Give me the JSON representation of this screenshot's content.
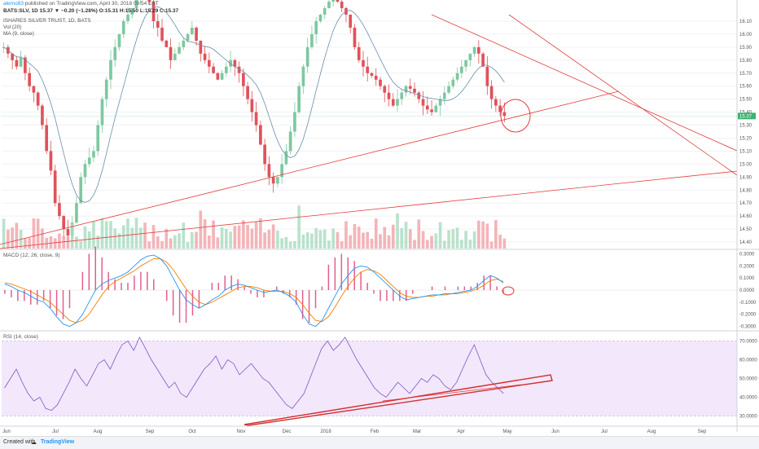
{
  "header": {
    "publisher_line_user": "alemo83",
    "publisher_line_rest": " published on TradingView.com, April 30, 2018 09:54 EST",
    "symbol_line": "BATS:SLV, 1D  15.37 ▼ −0.20 (−1.28%) O:15.31 H:15.50 L:15.29 C:15.37",
    "title": "ISHARES SILVER TRUST, 1D, BATS",
    "vol_label": "Vol (20)",
    "ma_label": "MA (9, close)"
  },
  "panes": {
    "macd_label": "MACD (12, 26, close, 9)",
    "rsi_label": "RSI (14, close)"
  },
  "footer": {
    "created_with": "Created with",
    "brand": "TradingView"
  },
  "colors": {
    "up": "#7ec8a0",
    "down": "#e0525a",
    "up_vol": "#a9dbbf",
    "down_vol": "#f0a3a8",
    "trend": "#e43c3c",
    "macd": "#2196f3",
    "signal": "#f57c00",
    "hist": "#d81b60",
    "rsi": "#7e57c2",
    "rsi_band": "#f3e7fb",
    "ma": "#6a8ca8"
  },
  "chart_data": {
    "type": "candlestick",
    "x_labels": [
      "Jun",
      "Jul",
      "Aug",
      "Sep",
      "Oct",
      "Nov",
      "Dec",
      "2018",
      "Feb",
      "Mar",
      "Apr",
      "May",
      "Jun",
      "Jul",
      "Aug",
      "Sep"
    ],
    "price_axis": [
      16.1,
      16.0,
      15.9,
      15.8,
      15.7,
      15.6,
      15.5,
      15.4,
      15.3,
      15.2,
      15.1,
      15.0,
      14.9,
      14.8,
      14.7,
      14.6,
      14.5,
      14.4
    ],
    "last_price": 15.37,
    "macd_axis": [
      0.3,
      0.2,
      0.1,
      0.0,
      -0.1,
      -0.2,
      -0.3
    ],
    "rsi_axis": [
      70,
      60,
      50,
      40,
      30
    ],
    "price_path": [
      15.9,
      15.85,
      15.8,
      15.75,
      15.82,
      15.7,
      15.6,
      15.55,
      15.45,
      15.3,
      15.1,
      14.95,
      14.7,
      14.6,
      14.5,
      14.45,
      14.55,
      14.7,
      14.9,
      15.0,
      15.05,
      15.1,
      15.3,
      15.5,
      15.65,
      15.8,
      15.9,
      16.0,
      16.1,
      16.15,
      16.2,
      16.3,
      16.4,
      16.35,
      16.25,
      16.1,
      16.05,
      15.95,
      15.9,
      15.8,
      15.85,
      15.9,
      15.95,
      16.0,
      16.05,
      15.95,
      15.85,
      15.8,
      15.75,
      15.7,
      15.65,
      15.7,
      15.75,
      15.8,
      15.75,
      15.7,
      15.6,
      15.5,
      15.4,
      15.3,
      15.15,
      15.0,
      14.9,
      14.85,
      14.9,
      15.0,
      15.1,
      15.25,
      15.4,
      15.6,
      15.75,
      15.9,
      16.0,
      16.1,
      16.15,
      16.2,
      16.25,
      16.3,
      16.25,
      16.2,
      16.15,
      16.05,
      15.9,
      15.8,
      15.75,
      15.7,
      15.68,
      15.65,
      15.6,
      15.55,
      15.5,
      15.45,
      15.5,
      15.55,
      15.6,
      15.58,
      15.55,
      15.5,
      15.45,
      15.42,
      15.4,
      15.45,
      15.5,
      15.55,
      15.6,
      15.65,
      15.7,
      15.75,
      15.8,
      15.85,
      15.9,
      15.85,
      15.75,
      15.6,
      15.5,
      15.45,
      15.4,
      15.37
    ],
    "macd_path": [
      0.05,
      0.03,
      0.0,
      -0.02,
      -0.05,
      -0.08,
      -0.1,
      -0.15,
      -0.22,
      -0.28,
      -0.3,
      -0.27,
      -0.2,
      -0.1,
      0.0,
      0.05,
      0.08,
      0.1,
      0.12,
      0.15,
      0.2,
      0.25,
      0.28,
      0.29,
      0.26,
      0.2,
      0.1,
      0.0,
      -0.08,
      -0.12,
      -0.15,
      -0.12,
      -0.08,
      -0.05,
      0.0,
      0.03,
      0.05,
      0.04,
      0.02,
      0.0,
      -0.02,
      -0.01,
      0.0,
      -0.02,
      -0.05,
      -0.1,
      -0.2,
      -0.28,
      -0.3,
      -0.25,
      -0.15,
      -0.05,
      0.05,
      0.12,
      0.18,
      0.2,
      0.19,
      0.15,
      0.1,
      0.05,
      0.0,
      -0.05,
      -0.08,
      -0.07,
      -0.06,
      -0.05,
      -0.04,
      -0.04,
      -0.03,
      -0.03,
      -0.02,
      -0.01,
      0.0,
      0.03,
      0.08,
      0.12,
      0.1,
      0.06
    ],
    "signal_path": [
      0.06,
      0.05,
      0.03,
      0.01,
      -0.01,
      -0.04,
      -0.07,
      -0.1,
      -0.15,
      -0.2,
      -0.25,
      -0.27,
      -0.25,
      -0.2,
      -0.12,
      -0.04,
      0.03,
      0.07,
      0.1,
      0.13,
      0.16,
      0.2,
      0.23,
      0.26,
      0.26,
      0.23,
      0.17,
      0.09,
      0.01,
      -0.05,
      -0.1,
      -0.12,
      -0.1,
      -0.07,
      -0.04,
      -0.01,
      0.02,
      0.03,
      0.03,
      0.02,
      0.0,
      -0.01,
      -0.01,
      -0.01,
      -0.03,
      -0.06,
      -0.12,
      -0.19,
      -0.25,
      -0.26,
      -0.22,
      -0.14,
      -0.05,
      0.03,
      0.1,
      0.15,
      0.17,
      0.16,
      0.13,
      0.08,
      0.03,
      -0.02,
      -0.05,
      -0.06,
      -0.06,
      -0.05,
      -0.05,
      -0.04,
      -0.04,
      -0.03,
      -0.03,
      -0.02,
      -0.01,
      0.01,
      0.04,
      0.08,
      0.09,
      0.07
    ],
    "rsi_path": [
      45,
      50,
      55,
      48,
      42,
      38,
      40,
      34,
      33,
      36,
      42,
      48,
      55,
      50,
      46,
      52,
      58,
      60,
      55,
      62,
      68,
      70,
      65,
      72,
      66,
      60,
      55,
      50,
      45,
      48,
      42,
      40,
      45,
      50,
      55,
      58,
      62,
      55,
      60,
      58,
      52,
      55,
      58,
      54,
      50,
      48,
      44,
      40,
      36,
      34,
      38,
      42,
      50,
      58,
      66,
      70,
      65,
      68,
      72,
      66,
      60,
      55,
      50,
      45,
      42,
      40,
      44,
      48,
      45,
      42,
      46,
      50,
      48,
      52,
      50,
      46,
      44,
      48,
      55,
      62,
      68,
      60,
      52,
      48,
      45,
      42
    ]
  }
}
